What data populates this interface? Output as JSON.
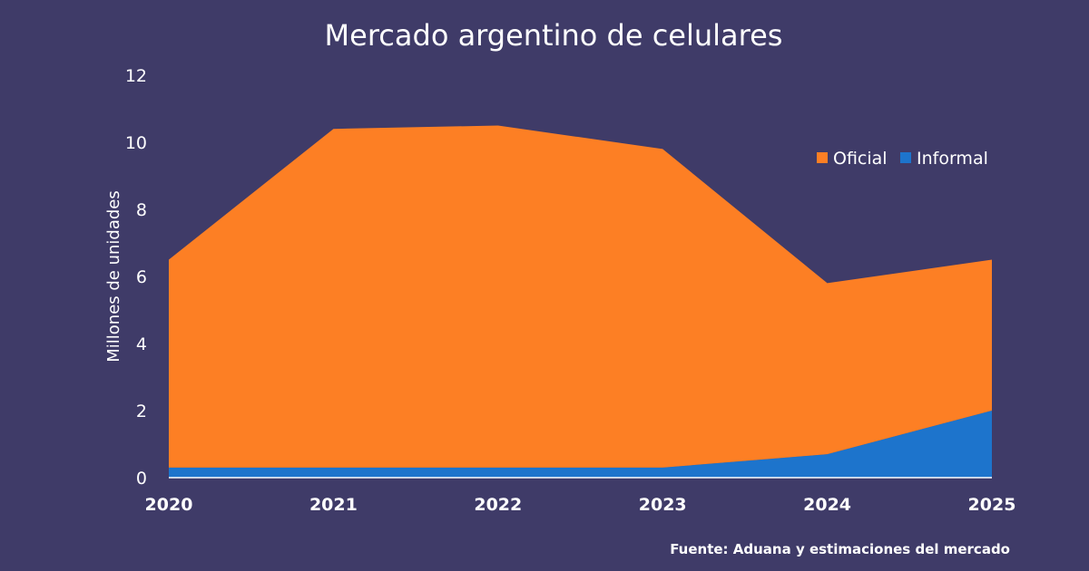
{
  "chart_data": {
    "type": "area",
    "stacked": true,
    "title": "Mercado argentino de celulares",
    "ylabel": "Millones de unidades",
    "xlabel": "",
    "x": [
      "2020",
      "2021",
      "2022",
      "2023",
      "2024",
      "2025"
    ],
    "ylim": [
      0,
      12
    ],
    "yticks": [
      "0",
      "2",
      "4",
      "6",
      "8",
      "10",
      "12"
    ],
    "grid": false,
    "legend_position": "top-right",
    "series": [
      {
        "name": "Informal",
        "values": [
          0.3,
          0.3,
          0.3,
          0.3,
          0.7,
          2.0
        ],
        "color": "#1d74cc"
      },
      {
        "name": "Oficial",
        "values": [
          6.2,
          10.1,
          10.2,
          9.5,
          5.1,
          4.5
        ],
        "color": "#fd7f24"
      }
    ],
    "legend": [
      "Oficial",
      "Informal"
    ],
    "source": "Fuente: Aduana y estimaciones del mercado"
  },
  "colors": {
    "background": "#3f3b68",
    "oficial": "#fd7f24",
    "informal": "#1d74cc",
    "text": "#ffffff"
  }
}
